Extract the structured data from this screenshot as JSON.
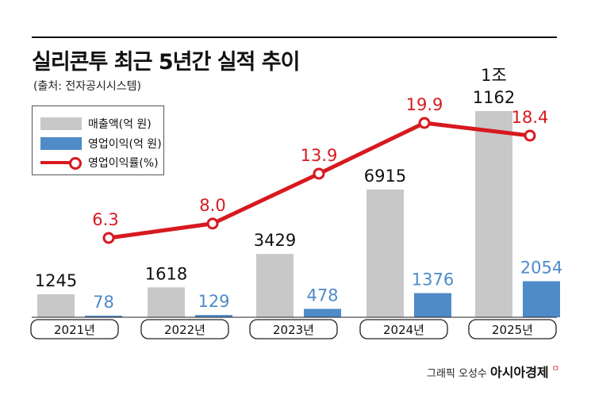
{
  "title": "실리콘투 최근 5년간 실적 추이",
  "subtitle": "(출처: 전자공시시스템)",
  "legend": {
    "sales": "매출액(억 원)",
    "profit": "영업이익(억 원)",
    "margin": "영업이익률(%)"
  },
  "credit": {
    "author": "그래픽 오성수",
    "brand": "아시아경제",
    "mark": "ㅁ"
  },
  "colors": {
    "sales": "#c8c8c8",
    "profit": "#4f8bc9",
    "margin": "#d7191f",
    "profit_label": "#4f8bc9"
  },
  "chart_data": {
    "type": "bar",
    "categories": [
      "2021년",
      "2022년",
      "2023년",
      "2024년",
      "2025년"
    ],
    "series": [
      {
        "name": "매출액(억 원)",
        "type": "bar",
        "values": [
          1245,
          1618,
          3429,
          6915,
          11162
        ],
        "labels": [
          "1245",
          "1618",
          "3429",
          "6915",
          "1조 1162"
        ]
      },
      {
        "name": "영업이익(억 원)",
        "type": "bar",
        "values": [
          78,
          129,
          478,
          1376,
          2054
        ],
        "labels": [
          "78",
          "129",
          "478",
          "1376",
          "2054"
        ]
      },
      {
        "name": "영업이익률(%)",
        "type": "line",
        "values": [
          6.3,
          8.0,
          13.9,
          19.9,
          18.4
        ],
        "labels": [
          "6.3",
          "8.0",
          "13.9",
          "19.9",
          "18.4"
        ]
      }
    ],
    "legend_position": "top-left",
    "grid": false
  }
}
